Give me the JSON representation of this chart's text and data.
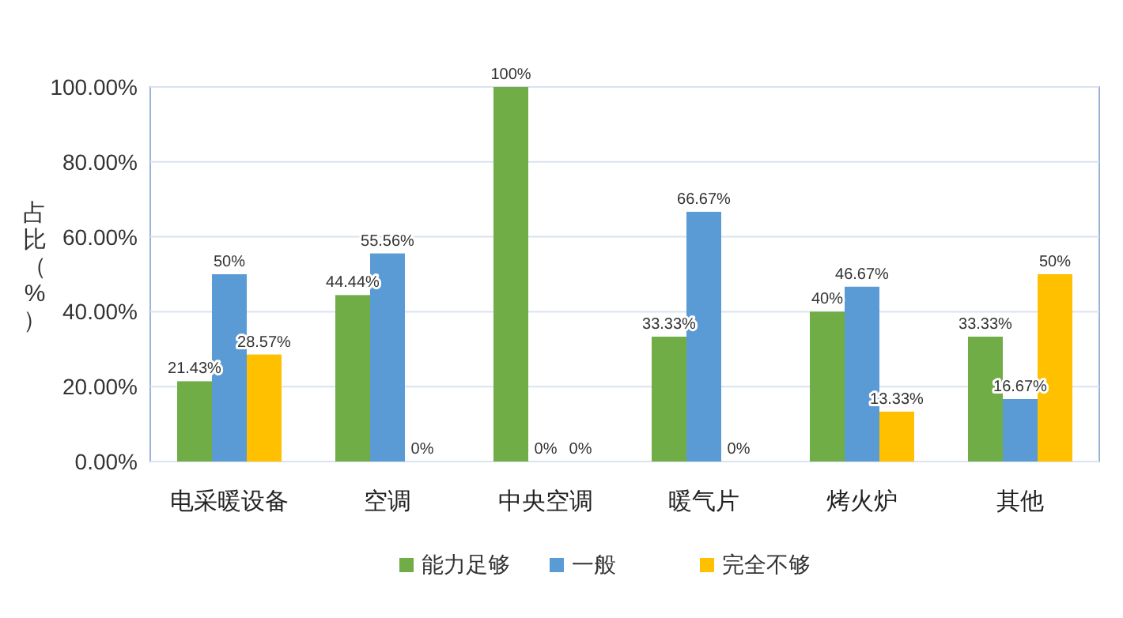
{
  "chart_data": {
    "type": "bar",
    "ylabel": "占比（%）",
    "categories": [
      "电采暖设备",
      "空调",
      "中央空调",
      "暖气片",
      "烤火炉",
      "其他"
    ],
    "series": [
      {
        "name": "能力足够",
        "color": "#70ad47",
        "values": [
          21.43,
          44.44,
          100,
          33.33,
          40,
          33.33
        ],
        "value_labels": [
          "21.43%",
          "44.44%",
          "100%",
          "33.33%",
          "40%",
          "33.33%"
        ]
      },
      {
        "name": "一般",
        "color": "#5b9bd5",
        "values": [
          50,
          55.56,
          0,
          66.67,
          46.67,
          16.67
        ],
        "value_labels": [
          "50%",
          "55.56%",
          "0%",
          "66.67%",
          "46.67%",
          "16.67%"
        ]
      },
      {
        "name": "完全不够",
        "color": "#ffc000",
        "values": [
          28.57,
          0,
          0,
          0,
          13.33,
          50
        ],
        "value_labels": [
          "28.57%",
          "0%",
          "0%",
          "0%",
          "13.33%",
          "50%"
        ]
      }
    ],
    "ylim": [
      0,
      100
    ],
    "yticks": [
      {
        "value": 0,
        "label": "0.00%"
      },
      {
        "value": 20,
        "label": "20.00%"
      },
      {
        "value": 40,
        "label": "40.00%"
      },
      {
        "value": 60,
        "label": "60.00%"
      },
      {
        "value": 80,
        "label": "80.00%"
      },
      {
        "value": 100,
        "label": "100.00%"
      }
    ],
    "grid": "y",
    "legend": "bottom"
  }
}
